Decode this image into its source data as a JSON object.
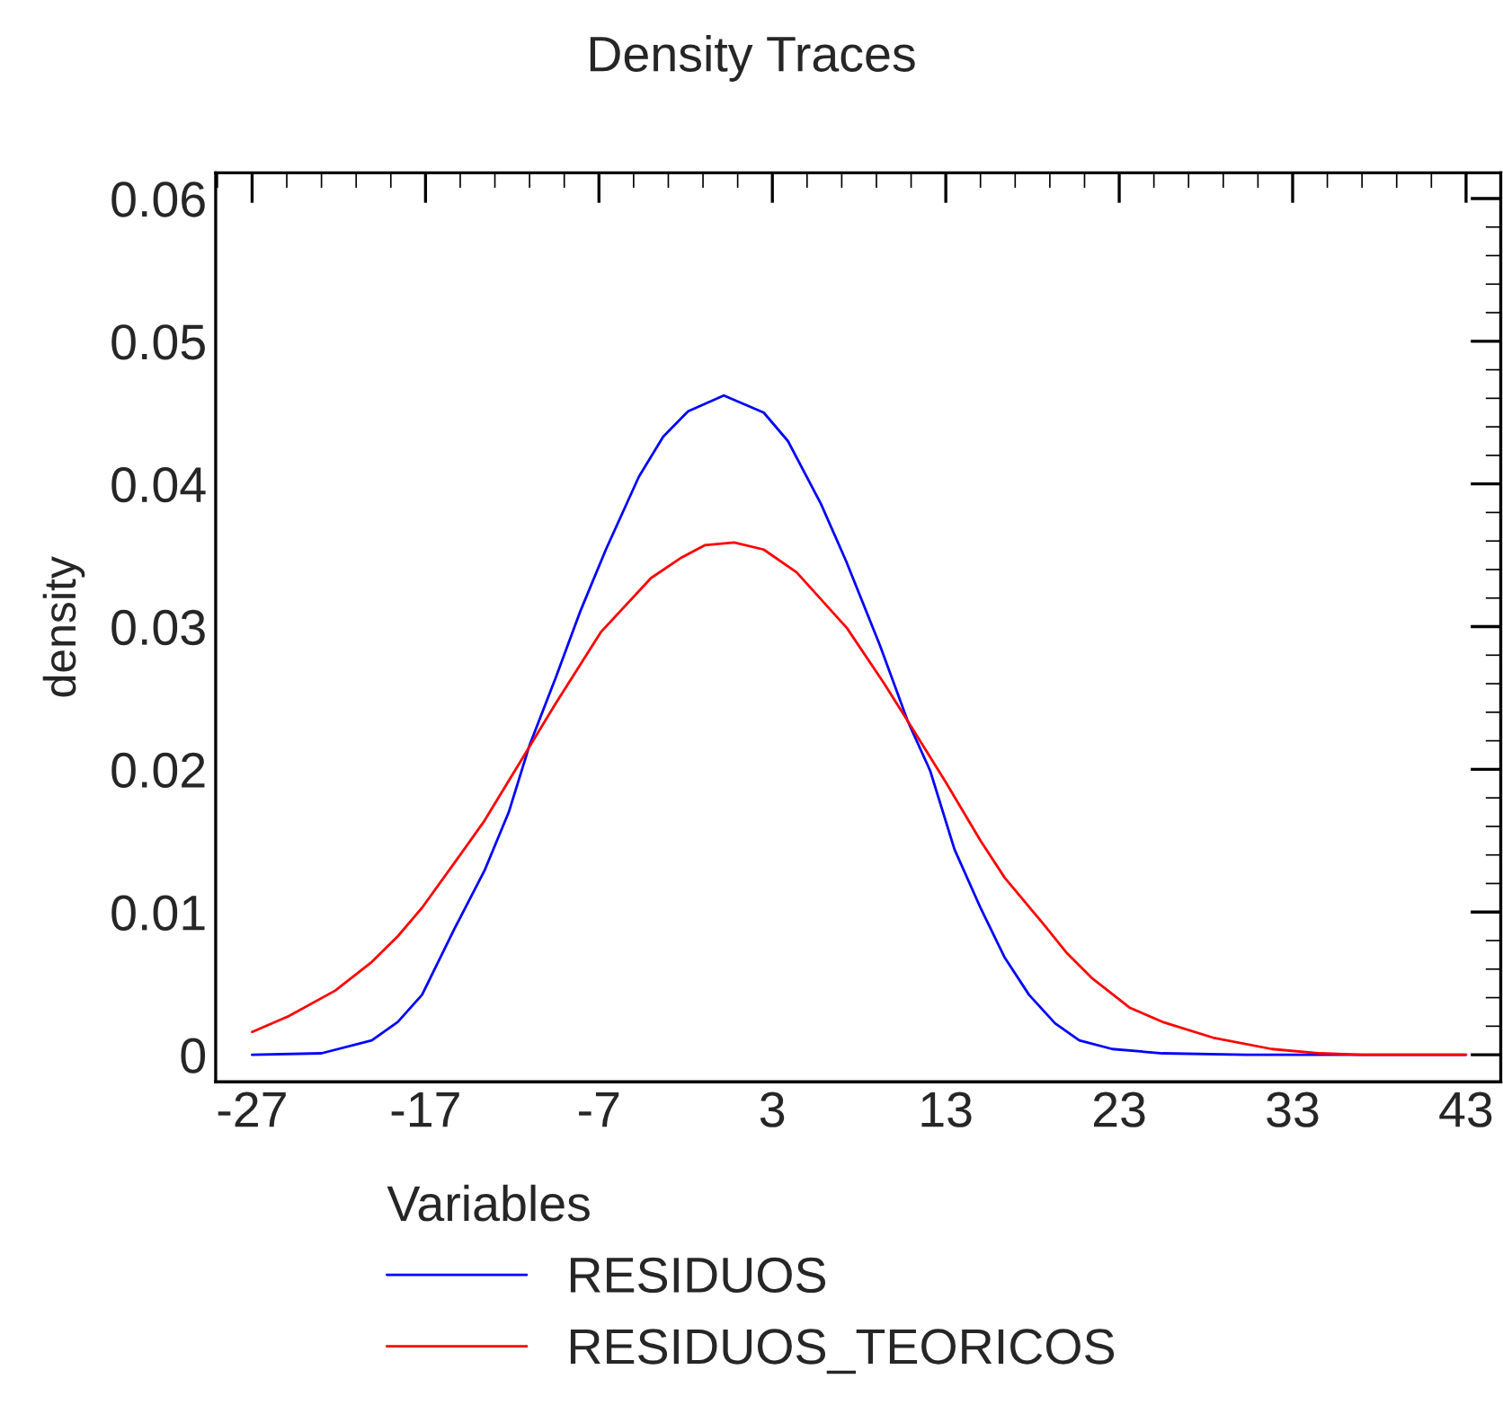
{
  "chart_data": {
    "type": "line",
    "title": "Density Traces",
    "ylabel": "density",
    "legend_title": "Variables",
    "legend": "bottom",
    "grid": false,
    "xlim": [
      -29.1,
      45
    ],
    "xticks": [
      -27,
      -17,
      -7,
      3,
      13,
      23,
      33,
      43
    ],
    "ylim": [
      -0.0019,
      0.0618
    ],
    "yticks": [
      0,
      0.01,
      0.02,
      0.03,
      0.04,
      0.05,
      0.06
    ],
    "series": [
      {
        "name": "RESIDUOS",
        "color": "#0000ff",
        "x": [
          -27,
          -23,
          -20.1,
          -18.6,
          -17.2,
          -15.3,
          -13.6,
          -12.2,
          -11.0,
          -9.5,
          -8.1,
          -6.6,
          -4.7,
          -3.3,
          -1.85,
          0.2,
          2.5,
          3.9,
          5.8,
          7.25,
          9.2,
          10.8,
          12.1,
          13.5,
          15.0,
          16.4,
          17.8,
          19.3,
          20.7,
          22.6,
          25.5,
          30.3,
          43
        ],
        "values": [
          0,
          0.0001,
          0.001,
          0.0023,
          0.0042,
          0.0089,
          0.0129,
          0.017,
          0.0217,
          0.0264,
          0.031,
          0.0354,
          0.0405,
          0.0433,
          0.0451,
          0.0462,
          0.045,
          0.043,
          0.0386,
          0.0346,
          0.0287,
          0.0234,
          0.0199,
          0.0144,
          0.0103,
          0.0068,
          0.0042,
          0.0022,
          0.001,
          0.0004,
          0.0001,
          0,
          0
        ]
      },
      {
        "name": "RESIDUOS_TEORICOS",
        "color": "#ff0000",
        "x": [
          -27,
          -24.9,
          -22.2,
          -20.1,
          -18.6,
          -17.2,
          -15.3,
          -13.6,
          -11.7,
          -9.5,
          -6.9,
          -4.0,
          -2.3,
          -0.9,
          0.8,
          2.5,
          4.4,
          7.3,
          9.4,
          10.9,
          13.0,
          15.0,
          16.4,
          18.6,
          20.0,
          21.4,
          23.6,
          25.5,
          28.4,
          31.8,
          34.6,
          37.0,
          43
        ],
        "values": [
          0.0016,
          0.0027,
          0.0045,
          0.0065,
          0.0083,
          0.0103,
          0.0135,
          0.0164,
          0.0202,
          0.0246,
          0.0296,
          0.0334,
          0.0348,
          0.0357,
          0.0359,
          0.0354,
          0.0338,
          0.0299,
          0.0261,
          0.0232,
          0.0191,
          0.015,
          0.0124,
          0.0092,
          0.0071,
          0.0054,
          0.0033,
          0.0023,
          0.0012,
          0.0004,
          0.0001,
          0,
          0
        ]
      }
    ]
  }
}
